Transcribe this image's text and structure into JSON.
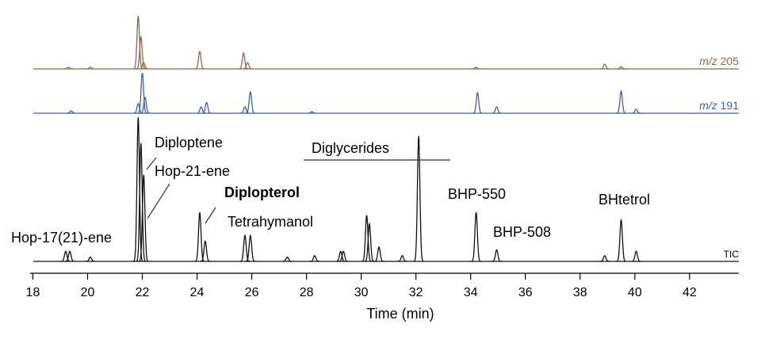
{
  "chart_data": {
    "type": "line",
    "x_label": "Time (min)",
    "xlim": [
      17.9,
      43.8
    ],
    "xticks": [
      18,
      20,
      22,
      24,
      26,
      28,
      30,
      32,
      34,
      36,
      38,
      40,
      42
    ],
    "ylim": [
      0,
      100
    ],
    "series": [
      {
        "name": "m/z 205",
        "color": "#8a6a4a",
        "x": [
          19.3,
          20.1,
          21.85,
          21.95,
          22.05,
          24.1,
          25.7,
          25.85,
          34.2,
          38.9,
          39.5
        ],
        "values": [
          3,
          3,
          100,
          60,
          12,
          33,
          30,
          12,
          3,
          9,
          4
        ]
      },
      {
        "name": "m/z 191",
        "color": "#3f5fae",
        "x": [
          19.4,
          21.85,
          22.0,
          22.1,
          24.15,
          24.35,
          25.75,
          25.95,
          28.2,
          34.25,
          34.95,
          39.5,
          40.05
        ],
        "values": [
          6,
          24,
          100,
          39,
          16,
          27,
          16,
          53,
          4,
          51,
          16,
          55,
          10
        ]
      },
      {
        "name": "TIC",
        "color": "#111111",
        "x": [
          19.2,
          19.35,
          20.1,
          21.85,
          21.95,
          22.05,
          24.1,
          24.3,
          25.75,
          25.95,
          27.3,
          28.3,
          29.25,
          29.35,
          30.2,
          30.3,
          30.65,
          31.5,
          32.1,
          34.2,
          34.95,
          38.9,
          39.5,
          40.05
        ],
        "values": [
          7,
          7,
          3,
          100,
          82,
          60,
          34,
          14,
          18,
          18,
          3,
          4,
          7,
          7,
          32,
          26,
          10,
          4,
          87,
          34,
          8,
          4,
          29,
          7
        ]
      }
    ],
    "annotations": [
      "Hop-17(21)-ene",
      "Diploptene",
      "Hop-21-ene",
      "Diplopterol",
      "Tetrahymanol",
      "Diglycerides",
      "BHP-550",
      "BHP-508",
      "BHtetrol"
    ]
  }
}
